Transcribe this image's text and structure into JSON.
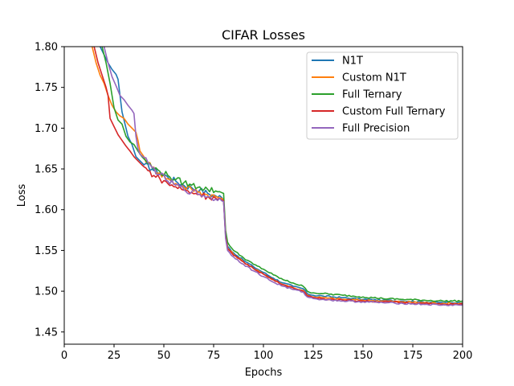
{
  "chart_data": {
    "type": "line",
    "title": "CIFAR Losses",
    "xlabel": "Epochs",
    "ylabel": "Loss",
    "xlim": [
      0,
      200
    ],
    "ylim": [
      1.435,
      1.8
    ],
    "xticks": [
      0,
      25,
      50,
      75,
      100,
      125,
      150,
      175,
      200
    ],
    "yticks": [
      1.45,
      1.5,
      1.55,
      1.6,
      1.65,
      1.7,
      1.75,
      1.8
    ],
    "legend_position": "top-right",
    "grid": false,
    "series": [
      {
        "name": "N1T",
        "color": "#1f77b4",
        "points": [
          [
            18,
            1.8
          ],
          [
            20,
            1.79
          ],
          [
            22,
            1.78
          ],
          [
            24,
            1.772
          ],
          [
            26,
            1.766
          ],
          [
            27,
            1.76
          ],
          [
            28,
            1.74
          ],
          [
            29,
            1.72
          ],
          [
            30,
            1.71
          ],
          [
            32,
            1.69
          ],
          [
            34,
            1.68
          ],
          [
            36,
            1.665
          ],
          [
            38,
            1.66
          ],
          [
            40,
            1.655
          ],
          [
            44,
            1.65
          ],
          [
            48,
            1.645
          ],
          [
            52,
            1.64
          ],
          [
            56,
            1.635
          ],
          [
            60,
            1.63
          ],
          [
            64,
            1.627
          ],
          [
            68,
            1.624
          ],
          [
            72,
            1.62
          ],
          [
            76,
            1.617
          ],
          [
            79,
            1.615
          ],
          [
            80,
            1.612
          ],
          [
            81,
            1.57
          ],
          [
            82,
            1.555
          ],
          [
            85,
            1.547
          ],
          [
            90,
            1.538
          ],
          [
            95,
            1.53
          ],
          [
            100,
            1.523
          ],
          [
            105,
            1.516
          ],
          [
            110,
            1.51
          ],
          [
            115,
            1.506
          ],
          [
            120,
            1.503
          ],
          [
            122,
            1.497
          ],
          [
            125,
            1.495
          ],
          [
            130,
            1.494
          ],
          [
            140,
            1.492
          ],
          [
            150,
            1.49
          ],
          [
            160,
            1.489
          ],
          [
            170,
            1.488
          ],
          [
            180,
            1.487
          ],
          [
            190,
            1.486
          ],
          [
            200,
            1.486
          ]
        ]
      },
      {
        "name": "Custom N1T",
        "color": "#ff7f0e",
        "points": [
          [
            14,
            1.8
          ],
          [
            16,
            1.78
          ],
          [
            18,
            1.765
          ],
          [
            20,
            1.755
          ],
          [
            22,
            1.74
          ],
          [
            24,
            1.728
          ],
          [
            26,
            1.72
          ],
          [
            28,
            1.715
          ],
          [
            30,
            1.712
          ],
          [
            32,
            1.705
          ],
          [
            34,
            1.7
          ],
          [
            36,
            1.695
          ],
          [
            37,
            1.685
          ],
          [
            38,
            1.672
          ],
          [
            40,
            1.665
          ],
          [
            42,
            1.658
          ],
          [
            44,
            1.652
          ],
          [
            48,
            1.645
          ],
          [
            52,
            1.638
          ],
          [
            56,
            1.632
          ],
          [
            60,
            1.628
          ],
          [
            64,
            1.625
          ],
          [
            68,
            1.622
          ],
          [
            72,
            1.618
          ],
          [
            76,
            1.616
          ],
          [
            79,
            1.614
          ],
          [
            80,
            1.612
          ],
          [
            81,
            1.57
          ],
          [
            82,
            1.553
          ],
          [
            85,
            1.545
          ],
          [
            90,
            1.536
          ],
          [
            95,
            1.528
          ],
          [
            100,
            1.521
          ],
          [
            105,
            1.514
          ],
          [
            110,
            1.508
          ],
          [
            115,
            1.504
          ],
          [
            120,
            1.501
          ],
          [
            122,
            1.495
          ],
          [
            125,
            1.493
          ],
          [
            130,
            1.492
          ],
          [
            140,
            1.49
          ],
          [
            150,
            1.489
          ],
          [
            160,
            1.488
          ],
          [
            170,
            1.487
          ],
          [
            180,
            1.486
          ],
          [
            190,
            1.485
          ],
          [
            200,
            1.485
          ]
        ]
      },
      {
        "name": "Full Ternary",
        "color": "#2ca02c",
        "points": [
          [
            19,
            1.8
          ],
          [
            21,
            1.78
          ],
          [
            23,
            1.755
          ],
          [
            25,
            1.725
          ],
          [
            27,
            1.71
          ],
          [
            29,
            1.705
          ],
          [
            31,
            1.69
          ],
          [
            33,
            1.683
          ],
          [
            35,
            1.68
          ],
          [
            37,
            1.672
          ],
          [
            39,
            1.665
          ],
          [
            41,
            1.66
          ],
          [
            44,
            1.652
          ],
          [
            48,
            1.647
          ],
          [
            52,
            1.642
          ],
          [
            56,
            1.637
          ],
          [
            60,
            1.633
          ],
          [
            64,
            1.63
          ],
          [
            68,
            1.628
          ],
          [
            72,
            1.625
          ],
          [
            76,
            1.623
          ],
          [
            79,
            1.621
          ],
          [
            80,
            1.62
          ],
          [
            81,
            1.575
          ],
          [
            82,
            1.56
          ],
          [
            85,
            1.55
          ],
          [
            90,
            1.541
          ],
          [
            95,
            1.533
          ],
          [
            100,
            1.527
          ],
          [
            105,
            1.52
          ],
          [
            110,
            1.514
          ],
          [
            115,
            1.51
          ],
          [
            120,
            1.506
          ],
          [
            122,
            1.5
          ],
          [
            125,
            1.498
          ],
          [
            130,
            1.497
          ],
          [
            140,
            1.495
          ],
          [
            150,
            1.493
          ],
          [
            160,
            1.491
          ],
          [
            170,
            1.49
          ],
          [
            180,
            1.489
          ],
          [
            190,
            1.488
          ],
          [
            200,
            1.488
          ]
        ]
      },
      {
        "name": "Custom Full Ternary",
        "color": "#d62728",
        "points": [
          [
            15,
            1.8
          ],
          [
            17,
            1.78
          ],
          [
            19,
            1.765
          ],
          [
            21,
            1.75
          ],
          [
            22,
            1.74
          ],
          [
            23,
            1.712
          ],
          [
            25,
            1.702
          ],
          [
            27,
            1.692
          ],
          [
            29,
            1.685
          ],
          [
            31,
            1.678
          ],
          [
            33,
            1.672
          ],
          [
            35,
            1.665
          ],
          [
            37,
            1.66
          ],
          [
            39,
            1.655
          ],
          [
            42,
            1.648
          ],
          [
            45,
            1.642
          ],
          [
            48,
            1.638
          ],
          [
            52,
            1.632
          ],
          [
            56,
            1.628
          ],
          [
            60,
            1.624
          ],
          [
            64,
            1.621
          ],
          [
            68,
            1.619
          ],
          [
            72,
            1.616
          ],
          [
            76,
            1.614
          ],
          [
            79,
            1.612
          ],
          [
            80,
            1.611
          ],
          [
            81,
            1.568
          ],
          [
            82,
            1.552
          ],
          [
            85,
            1.544
          ],
          [
            90,
            1.536
          ],
          [
            95,
            1.528
          ],
          [
            100,
            1.521
          ],
          [
            105,
            1.514
          ],
          [
            110,
            1.508
          ],
          [
            115,
            1.504
          ],
          [
            120,
            1.5
          ],
          [
            122,
            1.494
          ],
          [
            125,
            1.492
          ],
          [
            130,
            1.491
          ],
          [
            140,
            1.489
          ],
          [
            150,
            1.488
          ],
          [
            160,
            1.487
          ],
          [
            170,
            1.486
          ],
          [
            180,
            1.485
          ],
          [
            190,
            1.484
          ],
          [
            200,
            1.484
          ]
        ]
      },
      {
        "name": "Full Precision",
        "color": "#9467bd",
        "points": [
          [
            20,
            1.8
          ],
          [
            22,
            1.78
          ],
          [
            24,
            1.763
          ],
          [
            26,
            1.752
          ],
          [
            28,
            1.74
          ],
          [
            30,
            1.735
          ],
          [
            32,
            1.728
          ],
          [
            34,
            1.722
          ],
          [
            35,
            1.718
          ],
          [
            36,
            1.69
          ],
          [
            37,
            1.675
          ],
          [
            38,
            1.668
          ],
          [
            40,
            1.664
          ],
          [
            42,
            1.658
          ],
          [
            44,
            1.652
          ],
          [
            48,
            1.643
          ],
          [
            52,
            1.635
          ],
          [
            56,
            1.63
          ],
          [
            60,
            1.625
          ],
          [
            64,
            1.622
          ],
          [
            68,
            1.619
          ],
          [
            72,
            1.616
          ],
          [
            76,
            1.613
          ],
          [
            79,
            1.611
          ],
          [
            80,
            1.61
          ],
          [
            81,
            1.565
          ],
          [
            82,
            1.55
          ],
          [
            85,
            1.542
          ],
          [
            90,
            1.533
          ],
          [
            95,
            1.525
          ],
          [
            100,
            1.518
          ],
          [
            105,
            1.511
          ],
          [
            110,
            1.506
          ],
          [
            115,
            1.502
          ],
          [
            120,
            1.499
          ],
          [
            122,
            1.493
          ],
          [
            125,
            1.491
          ],
          [
            130,
            1.49
          ],
          [
            140,
            1.488
          ],
          [
            150,
            1.487
          ],
          [
            160,
            1.486
          ],
          [
            170,
            1.485
          ],
          [
            180,
            1.484
          ],
          [
            190,
            1.483
          ],
          [
            200,
            1.483
          ]
        ]
      }
    ]
  }
}
